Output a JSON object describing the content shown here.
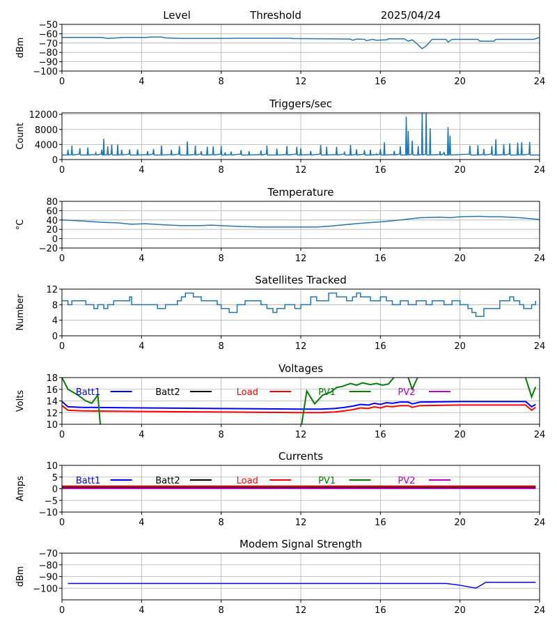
{
  "header": {
    "level": "Level",
    "threshold": "Threshold",
    "date": "2025/04/24"
  },
  "chart_data": [
    {
      "type": "line",
      "title": "",
      "ylabel": "dBm",
      "xlim": [
        0,
        24
      ],
      "ylim": [
        -100,
        -50
      ],
      "xticks": [
        0,
        4,
        8,
        12,
        16,
        20,
        24
      ],
      "yticks": [
        -100,
        -90,
        -80,
        -70,
        -60,
        -50
      ],
      "grid": true,
      "series": [
        {
          "name": "Level",
          "color": "#1f77b4",
          "x": [
            0,
            2,
            2.3,
            2.8,
            3,
            4.2,
            4.5,
            5,
            5.2,
            6,
            8.5,
            8.6,
            11.5,
            11.6,
            13.5,
            14.5,
            14.6,
            14.8,
            15.2,
            15.3,
            15.6,
            15.8,
            16.3,
            16.4,
            17.2,
            17.4,
            17.6,
            17.8,
            18.1,
            18.3,
            18.6,
            19.3,
            19.4,
            19.6,
            20.9,
            21.0,
            21.7,
            21.8,
            23.7,
            24
          ],
          "y": [
            -64,
            -64,
            -65,
            -64.5,
            -64,
            -64,
            -63.5,
            -63.5,
            -64.5,
            -65,
            -65,
            -64.8,
            -64.8,
            -65.2,
            -65.5,
            -65.8,
            -67,
            -65.8,
            -66,
            -67.5,
            -66,
            -67,
            -66.5,
            -65.5,
            -65.5,
            -68,
            -66.5,
            -70,
            -76,
            -73,
            -66,
            -66,
            -69,
            -66,
            -66,
            -68,
            -68,
            -66,
            -66,
            -64
          ]
        }
      ]
    },
    {
      "type": "line",
      "title": "Triggers/sec",
      "ylabel": "Count",
      "xlim": [
        0,
        24
      ],
      "ylim": [
        0,
        12400
      ],
      "xticks": [
        0,
        4,
        8,
        12,
        16,
        20,
        24
      ],
      "yticks": [
        0,
        4000,
        8000,
        12000
      ],
      "grid": true,
      "baseline": 1200,
      "spikes": [
        [
          0.3,
          2600
        ],
        [
          0.5,
          3700
        ],
        [
          0.9,
          3000
        ],
        [
          1.3,
          3200
        ],
        [
          1.7,
          1800
        ],
        [
          2.0,
          2600
        ],
        [
          2.1,
          5500
        ],
        [
          2.3,
          3500
        ],
        [
          2.5,
          4000
        ],
        [
          2.8,
          4000
        ],
        [
          3.0,
          2600
        ],
        [
          3.4,
          2700
        ],
        [
          3.8,
          2700
        ],
        [
          4.3,
          2200
        ],
        [
          4.6,
          2800
        ],
        [
          5.0,
          3700
        ],
        [
          5.5,
          2600
        ],
        [
          5.9,
          3600
        ],
        [
          6.3,
          4800
        ],
        [
          6.7,
          3700
        ],
        [
          7.0,
          2200
        ],
        [
          7.3,
          3400
        ],
        [
          7.6,
          3500
        ],
        [
          8.0,
          3600
        ],
        [
          8.2,
          1900
        ],
        [
          8.5,
          2100
        ],
        [
          9.0,
          2500
        ],
        [
          9.4,
          2200
        ],
        [
          10.0,
          2400
        ],
        [
          10.3,
          3700
        ],
        [
          10.8,
          2900
        ],
        [
          11.3,
          3600
        ],
        [
          11.8,
          3400
        ],
        [
          12.0,
          3000
        ],
        [
          12.5,
          2300
        ],
        [
          13.0,
          3900
        ],
        [
          13.3,
          3400
        ],
        [
          13.8,
          3400
        ],
        [
          14.2,
          1900
        ],
        [
          14.5,
          3900
        ],
        [
          14.8,
          2700
        ],
        [
          15.2,
          2500
        ],
        [
          15.5,
          2600
        ],
        [
          15.8,
          1500
        ],
        [
          16.0,
          2800
        ],
        [
          16.2,
          4600
        ],
        [
          16.7,
          2300
        ],
        [
          17.0,
          3500
        ],
        [
          17.3,
          11400
        ],
        [
          17.4,
          7600
        ],
        [
          17.6,
          5000
        ],
        [
          17.9,
          3600
        ],
        [
          18.1,
          12400
        ],
        [
          18.3,
          12400
        ],
        [
          18.5,
          8300
        ],
        [
          19.0,
          2200
        ],
        [
          19.2,
          2000
        ],
        [
          19.4,
          8600
        ],
        [
          19.5,
          6300
        ],
        [
          20.5,
          3700
        ],
        [
          20.9,
          3800
        ],
        [
          21.2,
          2800
        ],
        [
          21.6,
          3600
        ],
        [
          21.8,
          5400
        ],
        [
          22.2,
          4100
        ],
        [
          22.5,
          4300
        ],
        [
          22.9,
          4500
        ],
        [
          23.1,
          4600
        ],
        [
          23.5,
          4700
        ]
      ],
      "series": [
        {
          "name": "Triggers",
          "color": "#1f77b4"
        }
      ]
    },
    {
      "type": "line",
      "title": "Temperature",
      "ylabel": "°C",
      "xlim": [
        0,
        24
      ],
      "ylim": [
        -20,
        80
      ],
      "xticks": [
        0,
        4,
        8,
        12,
        16,
        20,
        24
      ],
      "yticks": [
        -20,
        0,
        20,
        40,
        60,
        80
      ],
      "grid": true,
      "series": [
        {
          "name": "Temperature",
          "color": "#1f77b4",
          "x": [
            0,
            1,
            2,
            2.8,
            3.5,
            4.2,
            5,
            6,
            7,
            7.5,
            8,
            9,
            10,
            11,
            12,
            12.8,
            13.5,
            14,
            15,
            16,
            16.5,
            17,
            18,
            19,
            19.5,
            20,
            21,
            21.5,
            22,
            23,
            23.5,
            24
          ],
          "y": [
            40,
            38,
            35,
            34,
            31,
            32,
            30,
            28,
            28,
            29,
            28,
            26,
            25,
            25,
            25,
            25,
            27,
            29,
            33,
            36,
            38,
            40,
            45,
            46,
            45,
            47,
            48,
            47,
            47,
            45,
            43,
            41
          ]
        }
      ]
    },
    {
      "type": "line",
      "title": "Satellites Tracked",
      "ylabel": "Number",
      "xlim": [
        0,
        24
      ],
      "ylim": [
        0,
        12
      ],
      "xticks": [
        0,
        4,
        8,
        12,
        16,
        20,
        24
      ],
      "yticks": [
        0,
        4,
        8,
        12
      ],
      "grid": true,
      "step": true,
      "series": [
        {
          "name": "Satellites",
          "color": "#1f77b4",
          "x": [
            0,
            0.3,
            0.5,
            1.2,
            1.6,
            1.8,
            2.1,
            2.3,
            2.5,
            2.6,
            3.2,
            3.4,
            3.5,
            4.5,
            4.8,
            5.2,
            5.8,
            5.9,
            6.0,
            6.2,
            6.6,
            7.0,
            7.6,
            7.8,
            8.0,
            8.4,
            8.8,
            9.2,
            10.0,
            10.3,
            10.6,
            10.8,
            11.2,
            11.7,
            12.0,
            12.5,
            12.8,
            13.4,
            13.8,
            14.3,
            14.6,
            14.8,
            15.0,
            15.5,
            16.0,
            16.3,
            16.6,
            17.0,
            17.4,
            17.8,
            18.0,
            18.3,
            18.6,
            19.2,
            19.6,
            20.0,
            20.4,
            20.6,
            20.8,
            21.2,
            22.0,
            22.5,
            22.7,
            23.0,
            23.2,
            23.6,
            23.8
          ],
          "y": [
            9,
            8,
            9,
            8,
            7,
            8,
            7,
            8,
            8,
            9,
            9,
            10,
            8,
            8,
            7,
            8,
            9,
            9,
            10,
            11,
            10,
            9,
            9,
            8,
            7,
            6,
            8,
            9,
            8,
            7,
            6,
            7,
            8,
            7,
            8,
            10,
            9,
            11,
            10,
            9,
            10,
            11,
            10,
            9,
            10,
            9,
            8,
            9,
            8,
            9,
            9,
            8,
            9,
            8,
            9,
            8,
            7,
            6,
            5,
            7,
            9,
            10,
            9,
            8,
            7,
            8,
            9
          ]
        }
      ]
    },
    {
      "type": "line",
      "title": "Voltages",
      "ylabel": "Volts",
      "xlim": [
        0,
        24
      ],
      "ylim": [
        10,
        18
      ],
      "xticks": [
        0,
        4,
        8,
        12,
        16,
        20,
        24
      ],
      "yticks": [
        10,
        12,
        14,
        16,
        18
      ],
      "grid": true,
      "legend": "top (inline row)",
      "series": [
        {
          "name": "Batt1",
          "color": "#0000ff",
          "x": [
            0,
            0.3,
            1,
            4,
            8,
            12,
            13,
            13.7,
            14.2,
            14.6,
            15,
            15.4,
            15.7,
            16,
            16.3,
            16.6,
            17,
            17.4,
            17.6,
            18,
            20,
            23.3,
            23.6,
            23.8
          ],
          "y": [
            13.9,
            13.0,
            12.9,
            12.8,
            12.7,
            12.6,
            12.6,
            12.7,
            12.9,
            13.1,
            13.4,
            13.3,
            13.6,
            13.4,
            13.7,
            13.6,
            13.8,
            13.8,
            13.5,
            13.8,
            13.9,
            13.9,
            13.0,
            13.4
          ]
        },
        {
          "name": "Batt2",
          "color": "#000000",
          "x": [],
          "y": []
        },
        {
          "name": "Load",
          "color": "#ff0000",
          "x": [
            0,
            0.3,
            1,
            4,
            8,
            12,
            13,
            13.7,
            14.2,
            14.6,
            15,
            15.4,
            15.7,
            16,
            16.3,
            16.6,
            17,
            17.4,
            17.6,
            18,
            20,
            23.3,
            23.6,
            23.8
          ],
          "y": [
            13.2,
            12.4,
            12.3,
            12.2,
            12.1,
            12.0,
            12.0,
            12.1,
            12.3,
            12.5,
            12.8,
            12.7,
            13.0,
            12.8,
            13.1,
            13.0,
            13.2,
            13.2,
            12.9,
            13.2,
            13.3,
            13.3,
            12.4,
            12.9
          ]
        },
        {
          "name": "PV1",
          "color": "#008000",
          "x": [
            0,
            0.3,
            0.8,
            1.2,
            1.5,
            1.8,
            1.95,
            12,
            12.3,
            12.7,
            13.1,
            13.5,
            13.8,
            14.1,
            14.5,
            14.8,
            15.1,
            15.5,
            15.8,
            16.1,
            16.4,
            16.8,
            17.3,
            17.6,
            18,
            23.2,
            23.6,
            23.8
          ],
          "y": [
            18,
            16,
            15,
            14,
            13.6,
            15,
            9,
            9,
            15.7,
            13.5,
            15,
            15.5,
            16.3,
            16.5,
            17,
            16.7,
            17.1,
            16.8,
            17,
            16.7,
            16.9,
            18.5,
            19,
            16,
            19,
            19,
            14.7,
            16.4
          ]
        },
        {
          "name": "PV2",
          "color": "#bf00bf",
          "x": [],
          "y": []
        }
      ]
    },
    {
      "type": "line",
      "title": "Currents",
      "ylabel": "Amps",
      "xlim": [
        0,
        24
      ],
      "ylim": [
        -10,
        10
      ],
      "xticks": [
        0,
        4,
        8,
        12,
        16,
        20,
        24
      ],
      "yticks": [
        -10,
        -5,
        0,
        5,
        10
      ],
      "grid": true,
      "legend": "top (inline row)",
      "series": [
        {
          "name": "Batt1",
          "color": "#0000ff",
          "x": [
            0,
            23.8
          ],
          "y": [
            0.4,
            0.4
          ]
        },
        {
          "name": "Batt2",
          "color": "#000000",
          "x": [
            0,
            23.8
          ],
          "y": [
            0.7,
            0.7
          ]
        },
        {
          "name": "Load",
          "color": "#ff0000",
          "x": [
            0,
            23.8
          ],
          "y": [
            1.1,
            1.1
          ]
        },
        {
          "name": "PV1",
          "color": "#008000",
          "x": [
            0,
            23.8
          ],
          "y": [
            0.1,
            0.1
          ]
        },
        {
          "name": "PV2",
          "color": "#bf00bf",
          "x": [
            0,
            23.8
          ],
          "y": [
            0.2,
            0.2
          ]
        }
      ]
    },
    {
      "type": "line",
      "title": "Modem Signal Strength",
      "ylabel": "dBm",
      "xlim": [
        0,
        24
      ],
      "ylim": [
        -110,
        -70
      ],
      "xticks": [
        0,
        4,
        8,
        12,
        16,
        20,
        24
      ],
      "yticks": [
        -100,
        -90,
        -80,
        -70
      ],
      "grid": true,
      "series": [
        {
          "name": "Modem",
          "color": "#0000ff",
          "x": [
            0.3,
            19.3,
            20,
            20.8,
            21.3,
            23.8
          ],
          "y": [
            -96,
            -96,
            -97.5,
            -100,
            -95,
            -95
          ]
        }
      ]
    }
  ]
}
